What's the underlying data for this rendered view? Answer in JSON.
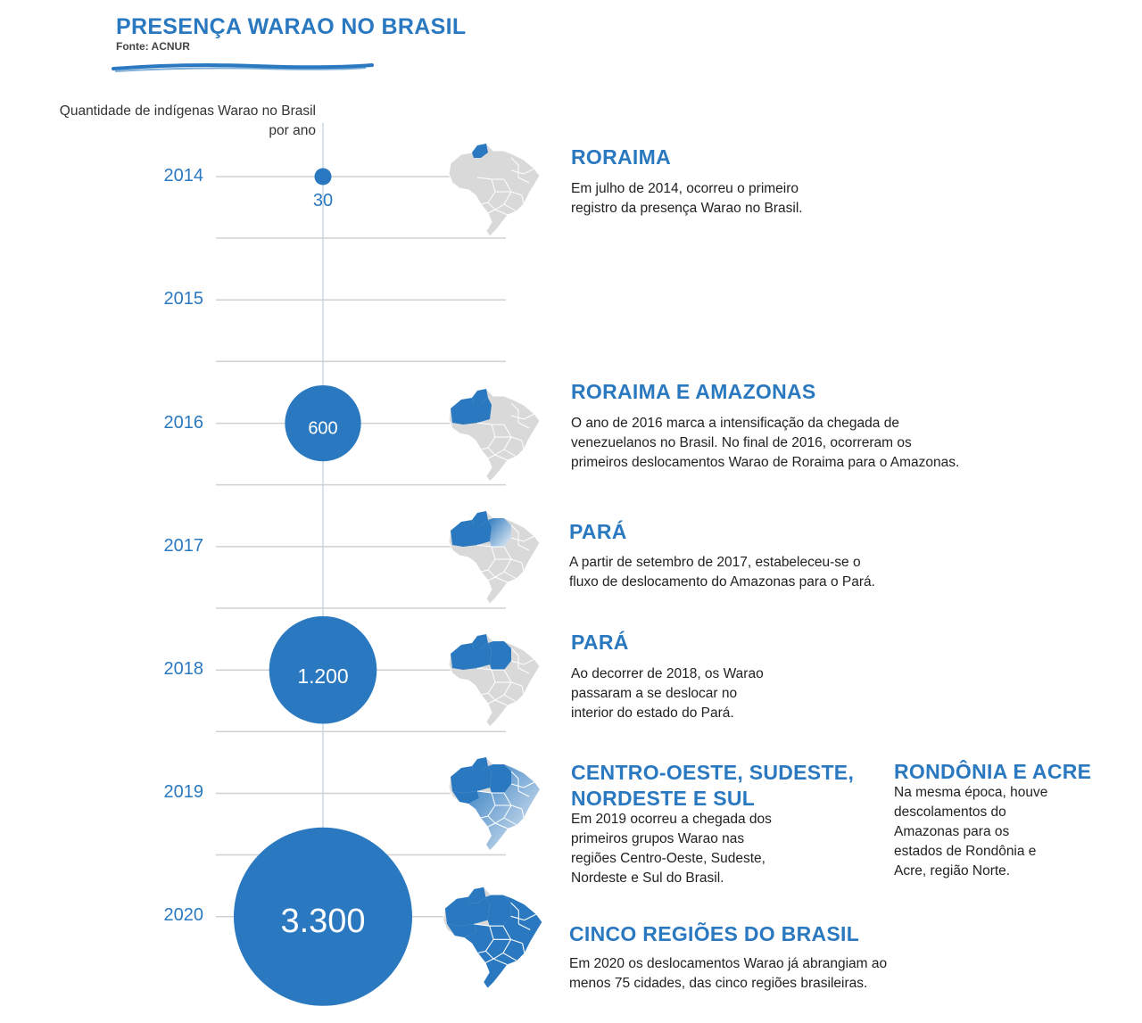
{
  "header": {
    "title": "PRESENÇA WARAO NO BRASIL",
    "source": "Fonte: ACNUR"
  },
  "colors": {
    "accent": "#2a79c0",
    "grid": "#d0d0d0",
    "map_gray": "#d9d9d9",
    "map_blue": "#2a79c0"
  },
  "chart_data": {
    "type": "scatter",
    "title": "PRESENÇA WARAO NO BRASIL",
    "ylabel": "Quantidade de indígenas Warao no Brasil por ano",
    "categories": [
      "2014",
      "2015",
      "2016",
      "2017",
      "2018",
      "2019",
      "2020"
    ],
    "points": [
      {
        "year": "2014",
        "value": 30,
        "label": "30"
      },
      {
        "year": "2016",
        "value": 600,
        "label": "600"
      },
      {
        "year": "2018",
        "value": 1200,
        "label": "1.200"
      },
      {
        "year": "2020",
        "value": 3300,
        "label": "3.300"
      }
    ]
  },
  "events": [
    {
      "year": "2014",
      "heading": "RORAIMA",
      "lines": [
        "Em julho de 2014, ocorreu o primeiro",
        "registro da presença Warao no Brasil."
      ],
      "map": "roraima-map"
    },
    {
      "year": "2016",
      "heading": "RORAIMA E AMAZONAS",
      "lines": [
        "O ano de 2016 marca a intensificação da chegada de",
        "venezuelanos no Brasil. No final de 2016, ocorreram os",
        "primeiros deslocamentos Warao de Roraima para o Amazonas."
      ],
      "map": "roraima-amazonas-map"
    },
    {
      "year": "2017",
      "heading": "PARÁ",
      "lines": [
        "A partir de setembro de 2017, estabeleceu-se o",
        "fluxo de deslocamento do Amazonas para o Pará."
      ],
      "map": "para-flow-map"
    },
    {
      "year": "2018",
      "heading": "PARÁ",
      "lines": [
        "Ao decorrer de 2018, os Warao",
        "passaram a se deslocar no",
        "interior do estado do Pará."
      ],
      "map": "para-map"
    },
    {
      "year": "2019",
      "heading_lines": [
        "CENTRO-OESTE, SUDESTE,",
        "NORDESTE E SUL"
      ],
      "lines": [
        "Em 2019 ocorreu a chegada dos",
        "primeiros grupos Warao nas",
        "regiões Centro-Oeste, Sudeste,",
        "Nordeste e Sul do Brasil."
      ],
      "map": "regions-map"
    },
    {
      "year": "2019",
      "heading": "RONDÔNIA E ACRE",
      "lines": [
        "Na mesma época, houve",
        "descolamentos do",
        "Amazonas para os",
        "estados de Rondônia e",
        "Acre, região Norte."
      ]
    },
    {
      "year": "2020",
      "heading": "CINCO REGIÕES DO BRASIL",
      "lines": [
        "Em 2020 os deslocamentos Warao já abrangiam ao",
        "menos 75 cidades, das cinco regiões brasileiras."
      ],
      "map": "brazil-full-map"
    }
  ]
}
